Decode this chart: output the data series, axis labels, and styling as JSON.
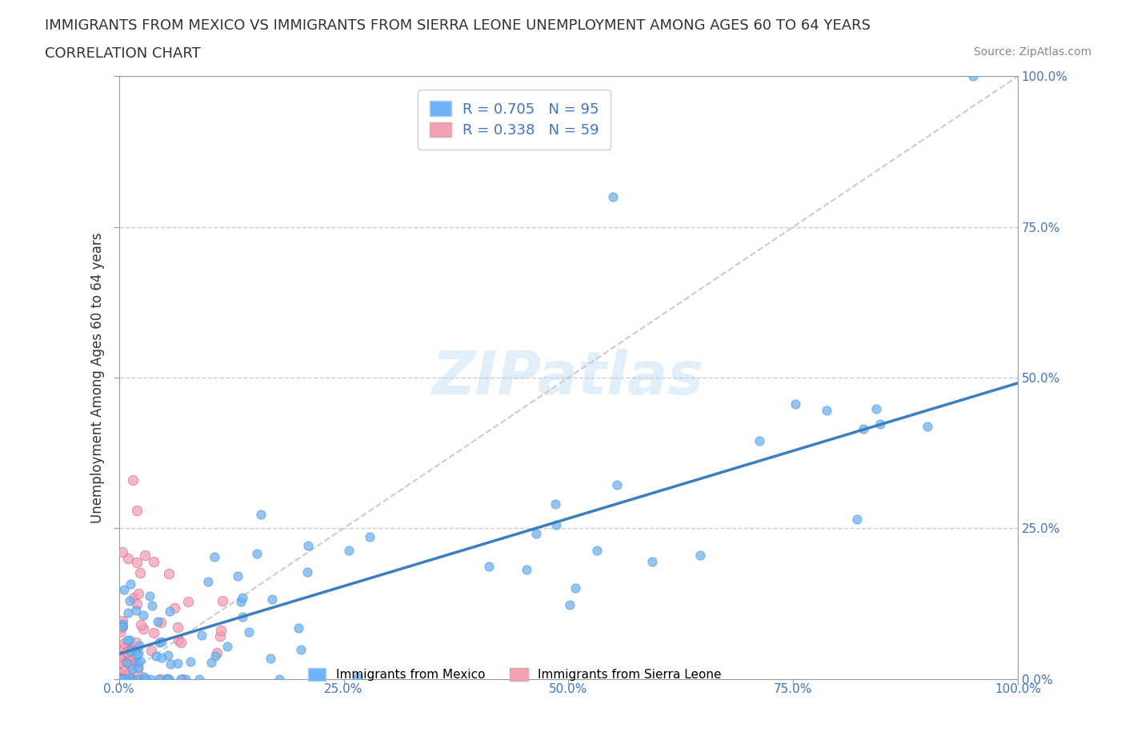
{
  "title_line1": "IMMIGRANTS FROM MEXICO VS IMMIGRANTS FROM SIERRA LEONE UNEMPLOYMENT AMONG AGES 60 TO 64 YEARS",
  "title_line2": "CORRELATION CHART",
  "source": "Source: ZipAtlas.com",
  "xlabel": "Immigrants from Mexico",
  "ylabel": "Unemployment Among Ages 60 to 64 years",
  "r_mexico": 0.705,
  "n_mexico": 95,
  "r_sierra": 0.338,
  "n_sierra": 59,
  "color_mexico": "#6cb4f5",
  "color_sierra": "#f4a0b5",
  "color_mexico_dark": "#5090d0",
  "color_sierra_dark": "#e06080",
  "regression_color": "#3a7fc1",
  "watermark": "ZIPatlas",
  "right_yticks": [
    0.0,
    25.0,
    50.0,
    75.0,
    100.0
  ],
  "right_yticklabels": [
    "0.0%",
    "25.0%",
    "50.0%",
    "75.0%",
    "100.0%"
  ],
  "bottom_xticks": [
    0.0,
    25.0,
    50.0,
    75.0,
    100.0
  ],
  "bottom_xticklabels": [
    "0.0%",
    "25.0%",
    "50.0%",
    "75.0%",
    "100.0%"
  ],
  "xlim": [
    0.0,
    100.0
  ],
  "ylim": [
    0.0,
    100.0
  ],
  "title_fontsize": 13,
  "subtitle_fontsize": 13,
  "axis_label_fontsize": 12,
  "tick_fontsize": 11,
  "legend_fontsize": 13
}
